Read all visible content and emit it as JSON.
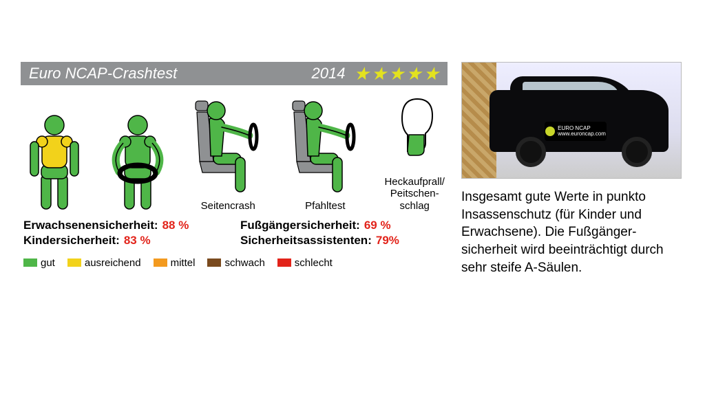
{
  "header": {
    "title": "Euro NCAP-Crashtest",
    "year": "2014",
    "bar_color": "#8f9193",
    "star_count": 5,
    "star_color": "#e3e21f"
  },
  "colors": {
    "good": "#4fb648",
    "adequate": "#f2d21b",
    "medium": "#f39a1f",
    "weak": "#7a4a1e",
    "bad": "#e2231a",
    "seat": "#8f9193",
    "outline": "#000000",
    "score_value": "#e2231a"
  },
  "dummies": {
    "front1": {
      "torso": "adequate",
      "head": "good",
      "arms": "good",
      "legs": "good"
    },
    "front2": {
      "torso": "good",
      "head": "good",
      "arms": "good",
      "legs": "good"
    },
    "side": {
      "label": "Seitencrash",
      "torso": "good",
      "head": "good",
      "thigh": "good"
    },
    "pole": {
      "label": "Pfahltest",
      "torso": "good",
      "head": "good",
      "thigh": "good"
    },
    "whiplash": {
      "label": "Heckaufprall/\nPeitschen-\nschlag",
      "neck": "good"
    }
  },
  "scores": [
    {
      "label": "Erwachsenensicherheit:",
      "value": "88 %"
    },
    {
      "label": "Fußgängersicherheit:",
      "value": "69 %"
    },
    {
      "label": "Kindersicherheit:",
      "value": "83 %"
    },
    {
      "label": "Sicherheitsassistenten:",
      "value": "79%"
    }
  ],
  "legend": [
    {
      "key": "good",
      "label": "gut"
    },
    {
      "key": "adequate",
      "label": "ausreichend"
    },
    {
      "key": "medium",
      "label": "mittel"
    },
    {
      "key": "weak",
      "label": "schwach"
    },
    {
      "key": "bad",
      "label": "schlecht"
    }
  ],
  "photo": {
    "badge_top": "EURO NCAP",
    "badge_bottom": "www.euroncap.com"
  },
  "caption": "Insgesamt gute Werte in punkto Insassenschutz (für Kinder und Erwachsene). Die Fußgänger­sicherheit wird beeinträchtigt durch sehr steife A-Säulen."
}
